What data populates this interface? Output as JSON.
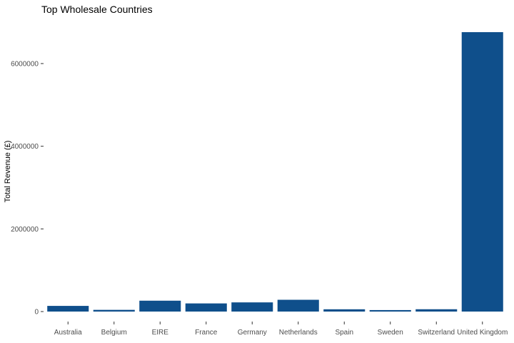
{
  "chart_data": {
    "type": "bar",
    "title": "Top Wholesale Countries",
    "xlabel": "",
    "ylabel": "Total Revenue (£)",
    "categories": [
      "Australia",
      "Belgium",
      "EIRE",
      "France",
      "Germany",
      "Netherlands",
      "Spain",
      "Sweden",
      "Switzerland",
      "United Kingdom"
    ],
    "values": [
      137000,
      41000,
      263000,
      197000,
      222000,
      285000,
      55000,
      36000,
      56000,
      6760000
    ],
    "ylim": [
      0,
      6800000
    ],
    "yticks": [
      0,
      2000000,
      4000000,
      6000000
    ],
    "ytick_labels": [
      "0",
      "2000000",
      "4000000",
      "6000000"
    ],
    "bar_color": "#0f4f8b",
    "grid": false,
    "legend": "none"
  }
}
